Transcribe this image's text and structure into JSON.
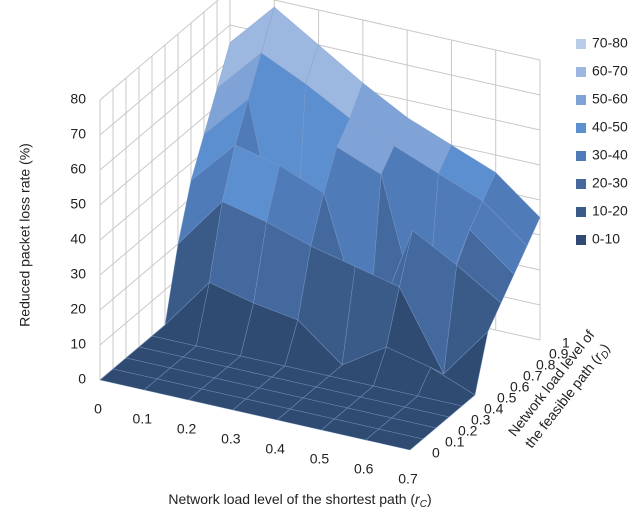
{
  "chart_data": {
    "type": "surface",
    "zlabel": "Reduced packet loss rate (%)",
    "xlabel": {
      "text": "Network load level of the shortest path (",
      "var": "r",
      "sub": "C",
      "close": ")"
    },
    "ylabel": {
      "line1": "Network load level of",
      "text": "the feasible path (",
      "var": "r",
      "sub": "D",
      "close": ")"
    },
    "categories": [
      0,
      0.1,
      0.2,
      0.3,
      0.4,
      0.5,
      0.6,
      0.7
    ],
    "depth": [
      0,
      0.1,
      0.2,
      0.3,
      0.4,
      0.5,
      0.6,
      0.7,
      0.8,
      0.9,
      1
    ],
    "z": [
      [
        0,
        0,
        0,
        0,
        0,
        0,
        0,
        0
      ],
      [
        0,
        0,
        0,
        0,
        0,
        0,
        0,
        0
      ],
      [
        0,
        0,
        0,
        0,
        0,
        0,
        0,
        0
      ],
      [
        0,
        0,
        0,
        0,
        0,
        0,
        0,
        0
      ],
      [
        0,
        0,
        0,
        0,
        0,
        0,
        0,
        0
      ],
      [
        0,
        15,
        12,
        10,
        0,
        8,
        5,
        0
      ],
      [
        20,
        35,
        32,
        28,
        25,
        22,
        0,
        15
      ],
      [
        35,
        48,
        45,
        40,
        0,
        35,
        28,
        20
      ],
      [
        45,
        58,
        0,
        50,
        45,
        0,
        35,
        25
      ],
      [
        55,
        68,
        62,
        55,
        50,
        45,
        40,
        30
      ],
      [
        65,
        78,
        70,
        62,
        55,
        50,
        45,
        35
      ]
    ],
    "zlim": [
      0,
      80
    ],
    "zticks": [
      0,
      10,
      20,
      30,
      40,
      50,
      60,
      70,
      80
    ],
    "bands": [
      {
        "label": "70-80",
        "from": 70,
        "to": 80,
        "color": "#b9cde9"
      },
      {
        "label": "60-70",
        "from": 60,
        "to": 70,
        "color": "#9db8e0"
      },
      {
        "label": "50-60",
        "from": 50,
        "to": 60,
        "color": "#7fa3d6"
      },
      {
        "label": "40-50",
        "from": 40,
        "to": 50,
        "color": "#5b8fd0"
      },
      {
        "label": "30-40",
        "from": 30,
        "to": 40,
        "color": "#4f7cb8"
      },
      {
        "label": "20-30",
        "from": 20,
        "to": 30,
        "color": "#44699e"
      },
      {
        "label": "10-20",
        "from": 10,
        "to": 20,
        "color": "#3a5a88"
      },
      {
        "label": "0-10",
        "from": 0,
        "to": 10,
        "color": "#2f4b72"
      }
    ]
  }
}
